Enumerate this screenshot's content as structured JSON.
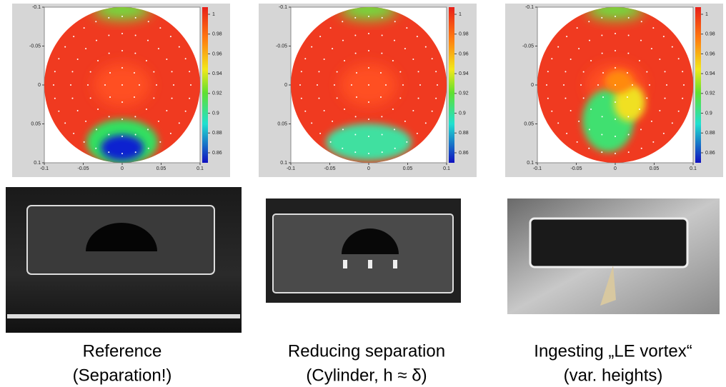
{
  "axes": {
    "xticks": [
      -0.1,
      -0.05,
      0,
      0.05,
      0.1
    ],
    "yticks": [
      -0.1,
      -0.05,
      0,
      0.05,
      0.1
    ],
    "colorbar_ticks": [
      1,
      0.98,
      0.96,
      0.94,
      0.92,
      0.9,
      0.88,
      0.86
    ]
  },
  "panels": [
    {
      "caption": [
        "Reference",
        "(Separation!)"
      ]
    },
    {
      "caption": [
        "Reducing separation",
        "(Cylinder, h ≈ δ)"
      ]
    },
    {
      "caption": [
        "Ingesting „LE vortex“",
        "(var. heights)"
      ]
    }
  ]
}
